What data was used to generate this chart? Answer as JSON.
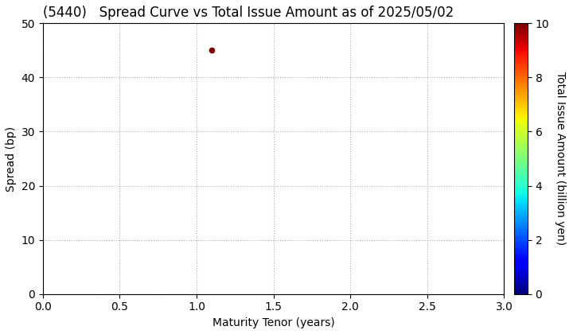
{
  "title": "(5440)   Spread Curve vs Total Issue Amount as of 2025/05/02",
  "xlabel": "Maturity Tenor (years)",
  "ylabel": "Spread (bp)",
  "colorbar_label": "Total Issue Amount (billion yen)",
  "xlim": [
    0.0,
    3.0
  ],
  "ylim": [
    0,
    50
  ],
  "xticks": [
    0.0,
    0.5,
    1.0,
    1.5,
    2.0,
    2.5,
    3.0
  ],
  "yticks": [
    0,
    10,
    20,
    30,
    40,
    50
  ],
  "colorbar_min": 0,
  "colorbar_max": 10,
  "colorbar_ticks": [
    0,
    2,
    4,
    6,
    8,
    10
  ],
  "scatter_x": [
    1.1
  ],
  "scatter_y": [
    45
  ],
  "scatter_values": [
    10
  ],
  "dot_size": 20,
  "background_color": "#ffffff",
  "grid_color": "#aaaaaa",
  "grid_style": "dotted",
  "colormap": "jet",
  "title_fontsize": 12,
  "label_fontsize": 10,
  "tick_fontsize": 10
}
